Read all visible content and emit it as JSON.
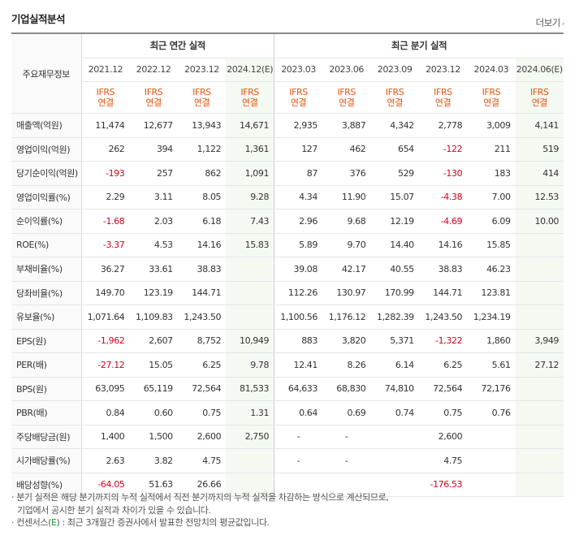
{
  "title": "기업실적분석",
  "more_label": "더보기",
  "more_arrow": "›",
  "header": {
    "row_label": "주요재무정보",
    "annual_group": "최근 연간 실적",
    "quarter_group": "최근 분기 실적",
    "periods": [
      "2021.12",
      "2022.12",
      "2023.12",
      "2024.12(E)",
      "2023.03",
      "2023.06",
      "2023.09",
      "2023.12",
      "2024.03",
      "2024.06(E)"
    ],
    "ifrs": [
      "IFRS",
      "IFRS",
      "IFRS",
      "IFRS",
      "IFRS",
      "IFRS",
      "IFRS",
      "IFRS",
      "IFRS",
      "IFRS"
    ],
    "basis": [
      "연결",
      "연결",
      "연결",
      "연결",
      "연결",
      "연결",
      "연결",
      "연결",
      "연결",
      "연결"
    ]
  },
  "rows": [
    {
      "label": "매출액(억원)",
      "values": [
        "11,474",
        "12,677",
        "13,943",
        "14,671",
        "2,935",
        "3,887",
        "4,342",
        "2,778",
        "3,009",
        "4,141"
      ]
    },
    {
      "label": "영업이익(억원)",
      "values": [
        "262",
        "394",
        "1,122",
        "1,361",
        "127",
        "462",
        "654",
        "-122",
        "211",
        "519"
      ]
    },
    {
      "label": "당기순이익(억원)",
      "values": [
        "-193",
        "257",
        "862",
        "1,091",
        "87",
        "376",
        "529",
        "-130",
        "183",
        "414"
      ]
    },
    {
      "label": "영업이익률(%)",
      "values": [
        "2.29",
        "3.11",
        "8.05",
        "9.28",
        "4.34",
        "11.90",
        "15.07",
        "-4.38",
        "7.00",
        "12.53"
      ]
    },
    {
      "label": "순이익률(%)",
      "values": [
        "-1.68",
        "2.03",
        "6.18",
        "7.43",
        "2.96",
        "9.68",
        "12.19",
        "-4.69",
        "6.09",
        "10.00"
      ]
    },
    {
      "label": "ROE(%)",
      "values": [
        "-3.37",
        "4.53",
        "14.16",
        "15.83",
        "5.89",
        "9.70",
        "14.40",
        "14.16",
        "15.85",
        ""
      ]
    },
    {
      "label": "부채비율(%)",
      "values": [
        "36.27",
        "33.61",
        "38.83",
        "",
        "39.08",
        "42.17",
        "40.55",
        "38.83",
        "46.23",
        ""
      ]
    },
    {
      "label": "당좌비율(%)",
      "values": [
        "149.70",
        "123.19",
        "144.71",
        "",
        "112.26",
        "130.97",
        "170.99",
        "144.71",
        "123.81",
        ""
      ]
    },
    {
      "label": "유보율(%)",
      "values": [
        "1,071.64",
        "1,109.83",
        "1,243.50",
        "",
        "1,100.56",
        "1,176.12",
        "1,282.39",
        "1,243.50",
        "1,234.19",
        ""
      ]
    },
    {
      "label": "EPS(원)",
      "values": [
        "-1,962",
        "2,607",
        "8,752",
        "10,949",
        "883",
        "3,820",
        "5,371",
        "-1,322",
        "1,860",
        "3,949"
      ]
    },
    {
      "label": "PER(배)",
      "values": [
        "-27.12",
        "15.05",
        "6.25",
        "9.78",
        "12.41",
        "8.26",
        "6.14",
        "6.25",
        "5.61",
        "27.12"
      ]
    },
    {
      "label": "BPS(원)",
      "values": [
        "63,095",
        "65,119",
        "72,564",
        "81,533",
        "64,633",
        "68,830",
        "74,810",
        "72,564",
        "72,176",
        ""
      ]
    },
    {
      "label": "PBR(배)",
      "values": [
        "0.84",
        "0.60",
        "0.75",
        "1.31",
        "0.64",
        "0.69",
        "0.74",
        "0.75",
        "0.76",
        ""
      ]
    },
    {
      "label": "주당배당금(원)",
      "values": [
        "1,400",
        "1,500",
        "2,600",
        "2,750",
        "-",
        "-",
        "",
        "2,600",
        "",
        ""
      ]
    },
    {
      "label": "시가배당률(%)",
      "values": [
        "2.63",
        "3.82",
        "4.75",
        "",
        "-",
        "-",
        "",
        "4.75",
        "",
        ""
      ]
    },
    {
      "label": "배당성향(%)",
      "values": [
        "-64.05",
        "51.63",
        "26.66",
        "",
        "",
        "",
        "",
        "-176.53",
        "",
        ""
      ]
    }
  ],
  "notes": {
    "line1": "· 분기 실적은 해당 분기까지의 누적 실적에서 직전 분기까지의 누적 실적을 차감하는 방식으로 계산되므로,",
    "line2": "기업에서 공시한 분기 실적과 차이가 있을 수 있습니다.",
    "line3_pre": "· 컨센서스(",
    "line3_e": "E",
    "line3_post": ") : 최근 3개월간 증권사에서 발표한 전망치의 평균값입니다."
  },
  "colors": {
    "negative": "#d3001f",
    "ifrs": "#e5530c",
    "estimate_bg": "#f4f9f2"
  }
}
